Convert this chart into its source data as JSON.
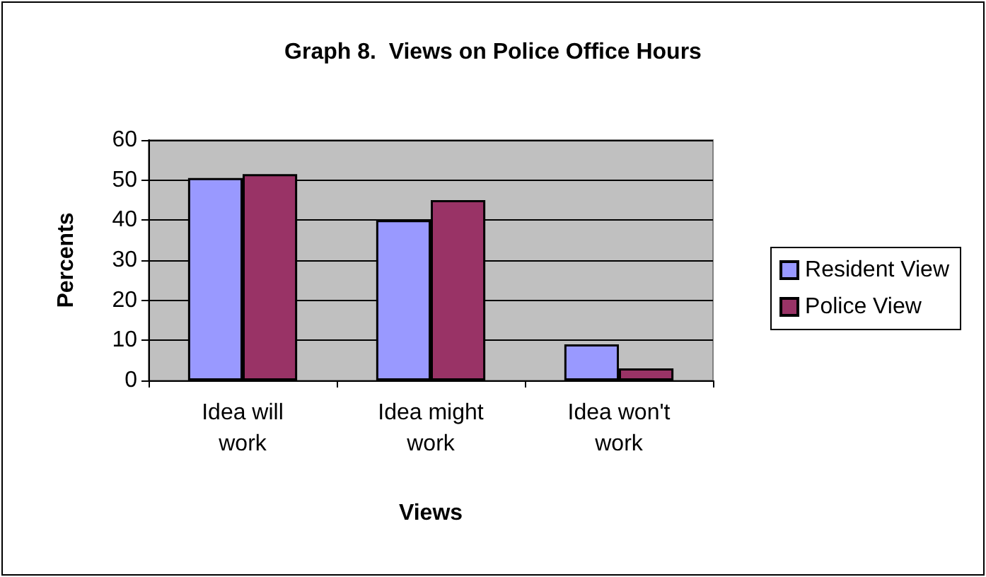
{
  "chart_data": {
    "type": "bar",
    "title": "Graph 8.  Views on Police Office Hours",
    "xlabel": "Views",
    "ylabel": "Percents",
    "categories": [
      "Idea will\nwork",
      "Idea might\nwork",
      "Idea won't\nwork"
    ],
    "series": [
      {
        "name": "Resident View",
        "color": "#9999ff",
        "values": [
          50.5,
          40,
          9
        ]
      },
      {
        "name": "Police View",
        "color": "#993366",
        "values": [
          51.5,
          45,
          3
        ]
      }
    ],
    "ylim": [
      0,
      60
    ],
    "yticks": [
      0,
      10,
      20,
      30,
      40,
      50,
      60
    ],
    "grid": "y",
    "legend": "right"
  }
}
